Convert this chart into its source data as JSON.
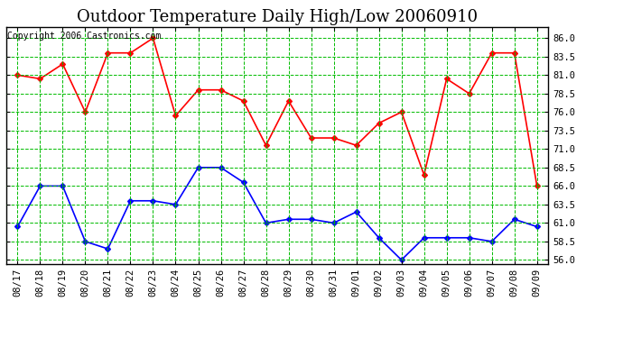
{
  "title": "Outdoor Temperature Daily High/Low 20060910",
  "copyright_text": "Copyright 2006 Castronics.com",
  "x_labels": [
    "08/17",
    "08/18",
    "08/19",
    "08/20",
    "08/21",
    "08/22",
    "08/23",
    "08/24",
    "08/25",
    "08/26",
    "08/27",
    "08/28",
    "08/29",
    "08/30",
    "08/31",
    "09/01",
    "09/02",
    "09/03",
    "09/04",
    "09/05",
    "09/06",
    "09/07",
    "09/08",
    "09/09"
  ],
  "high_temps": [
    81.0,
    80.5,
    82.5,
    76.0,
    84.0,
    84.0,
    86.0,
    75.5,
    79.0,
    79.0,
    77.5,
    71.5,
    77.5,
    72.5,
    72.5,
    71.5,
    74.5,
    76.0,
    67.5,
    80.5,
    78.5,
    84.0,
    84.0,
    66.0
  ],
  "low_temps": [
    60.5,
    66.0,
    66.0,
    58.5,
    57.5,
    64.0,
    64.0,
    63.5,
    68.5,
    68.5,
    66.5,
    61.0,
    61.5,
    61.5,
    61.0,
    62.5,
    59.0,
    56.0,
    59.0,
    59.0,
    59.0,
    58.5,
    61.5,
    60.5
  ],
  "high_color": "#ff0000",
  "low_color": "#0000ff",
  "bg_color": "#ffffff",
  "plot_bg_color": "#ffffff",
  "grid_color": "#00bb00",
  "border_color": "#000000",
  "ylim": [
    55.5,
    87.5
  ],
  "yticks": [
    56.0,
    58.5,
    61.0,
    63.5,
    66.0,
    68.5,
    71.0,
    73.5,
    76.0,
    78.5,
    81.0,
    83.5,
    86.0
  ],
  "title_fontsize": 13,
  "copyright_fontsize": 7,
  "tick_fontsize": 7.5,
  "marker": "D",
  "markersize": 3,
  "linewidth": 1.2
}
